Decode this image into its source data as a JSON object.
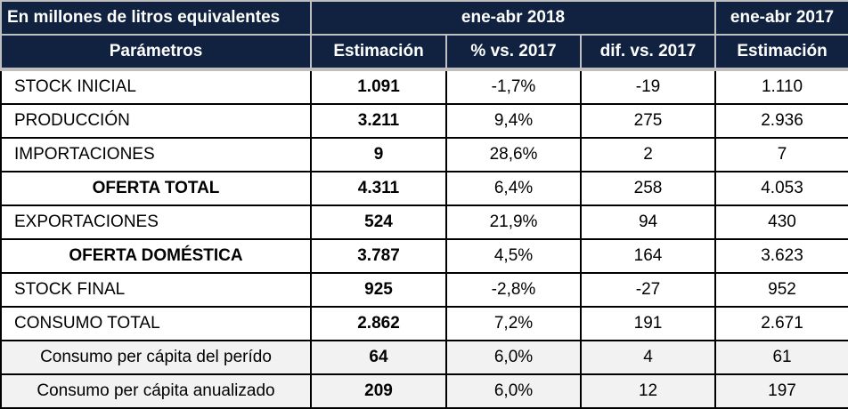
{
  "header": {
    "units_label": "En millones de litros equivalentes",
    "period_current": "ene-abr 2018",
    "period_previous": "ene-abr 2017",
    "columns": [
      "Parámetros",
      "Estimación",
      "% vs. 2017",
      "dif. vs. 2017",
      "Estimación"
    ]
  },
  "rows": [
    {
      "label": "STOCK INICIAL",
      "est_2018": "1.091",
      "pct_vs_2017": "-1,7%",
      "dif_vs_2017": "-19",
      "est_2017": "1.110"
    },
    {
      "label": "PRODUCCIÓN",
      "est_2018": "3.211",
      "pct_vs_2017": "9,4%",
      "dif_vs_2017": "275",
      "est_2017": "2.936"
    },
    {
      "label": "IMPORTACIONES",
      "est_2018": "9",
      "pct_vs_2017": "28,6%",
      "dif_vs_2017": "2",
      "est_2017": "7"
    },
    {
      "label": "OFERTA TOTAL",
      "est_2018": "4.311",
      "pct_vs_2017": "6,4%",
      "dif_vs_2017": "258",
      "est_2017": "4.053"
    },
    {
      "label": "EXPORTACIONES",
      "est_2018": "524",
      "pct_vs_2017": "21,9%",
      "dif_vs_2017": "94",
      "est_2017": "430"
    },
    {
      "label": "OFERTA DOMÉSTICA",
      "est_2018": "3.787",
      "pct_vs_2017": "4,5%",
      "dif_vs_2017": "164",
      "est_2017": "3.623"
    },
    {
      "label": "STOCK FINAL",
      "est_2018": "925",
      "pct_vs_2017": "-2,8%",
      "dif_vs_2017": "-27",
      "est_2017": "952"
    },
    {
      "label": "CONSUMO TOTAL",
      "est_2018": "2.862",
      "pct_vs_2017": "7,2%",
      "dif_vs_2017": "191",
      "est_2017": "2.671"
    },
    {
      "label": "Consumo per cápita del perído",
      "est_2018": "64",
      "pct_vs_2017": "6,0%",
      "dif_vs_2017": "4",
      "est_2017": "61"
    },
    {
      "label": "Consumo per cápita anualizado",
      "est_2018": "209",
      "pct_vs_2017": "6,0%",
      "dif_vs_2017": "12",
      "est_2017": "197"
    }
  ],
  "colors": {
    "header_bg": "#10223f",
    "header_text": "#ffffff",
    "shaded_row_bg": "#f2f2f2"
  }
}
